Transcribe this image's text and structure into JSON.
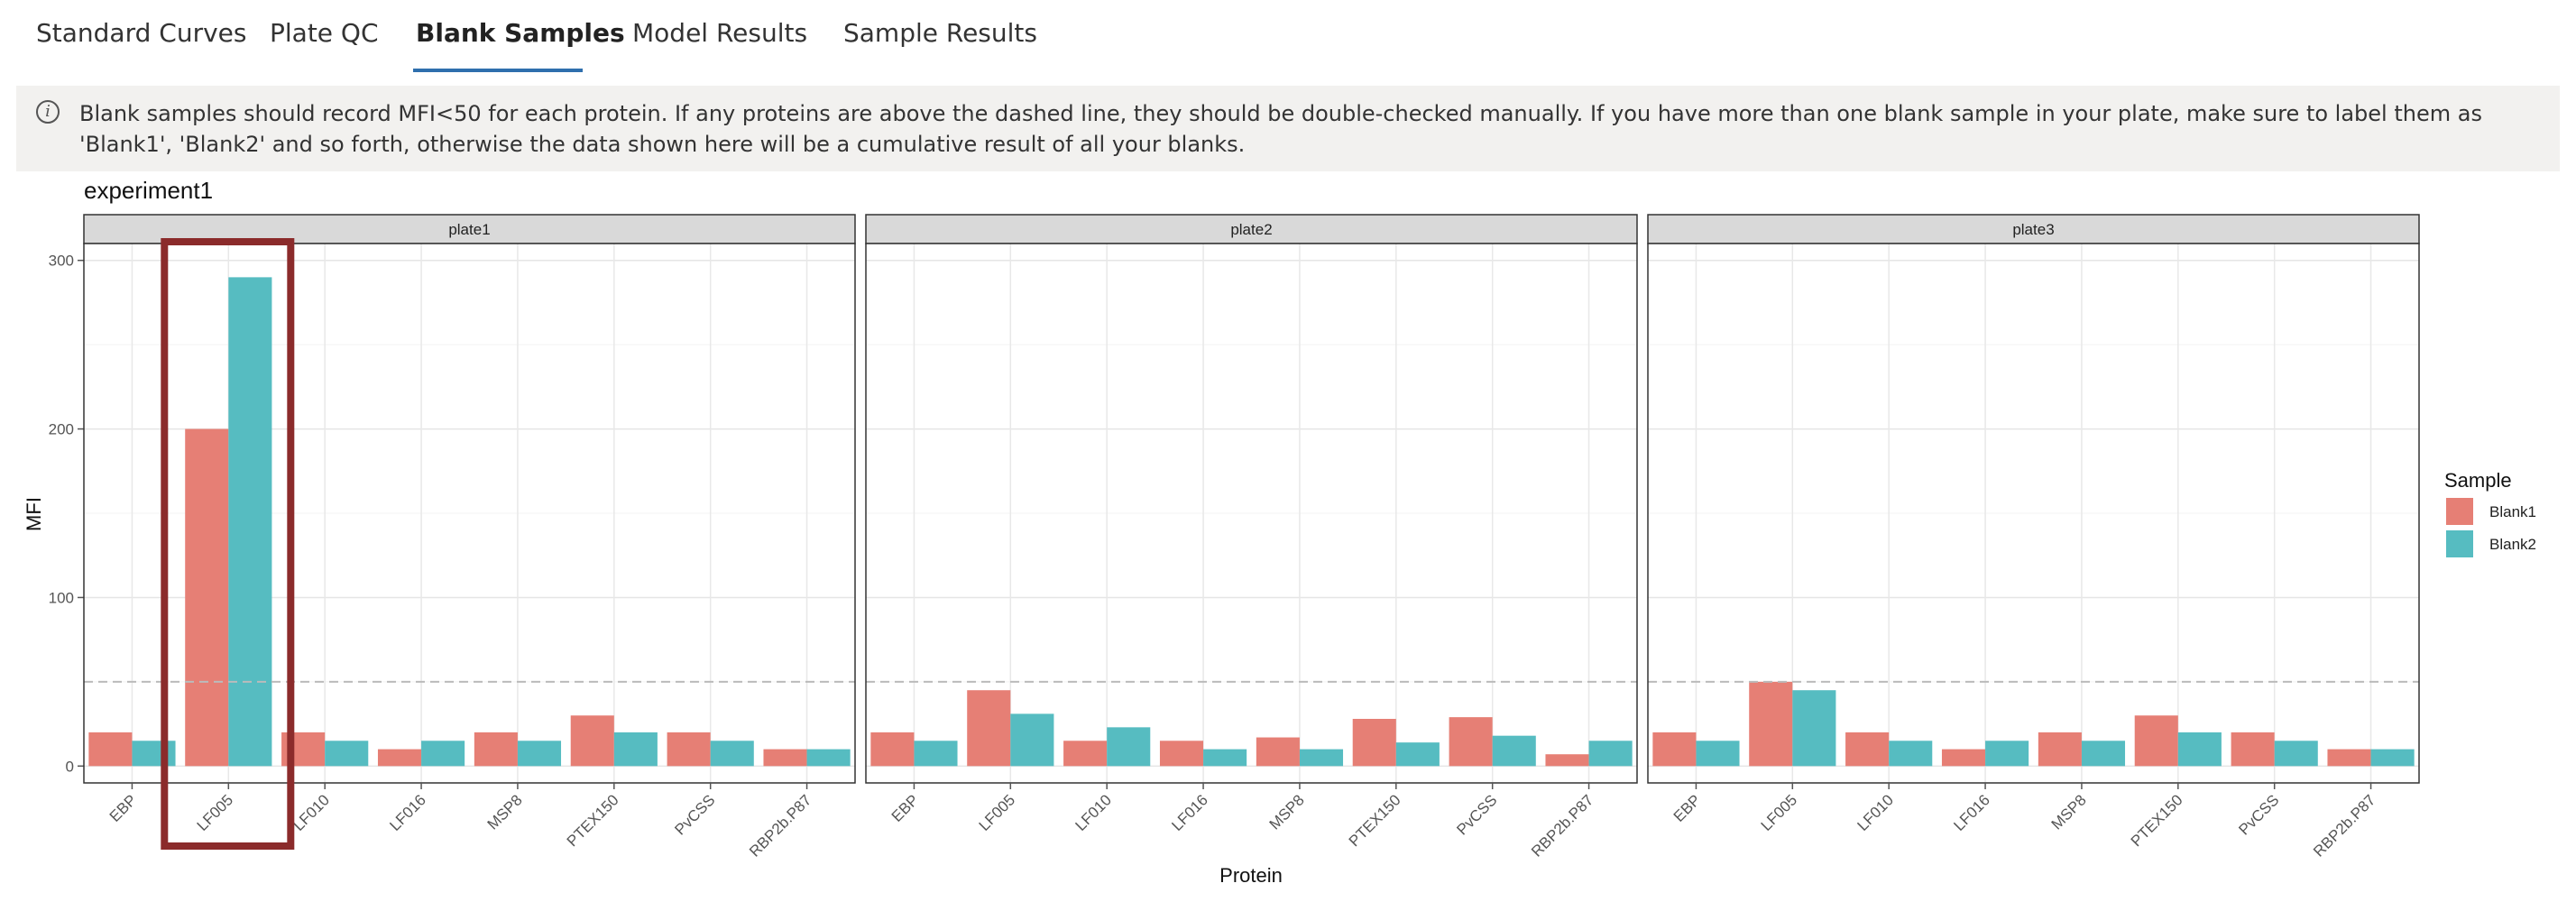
{
  "tabs": [
    {
      "label": "Standard Curves",
      "active": false
    },
    {
      "label": "Plate QC",
      "active": false
    },
    {
      "label": "Blank Samples",
      "active": true
    },
    {
      "label": "Model Results",
      "active": false
    },
    {
      "label": "Sample Results",
      "active": false
    }
  ],
  "info": {
    "icon": "info-icon",
    "text": "Blank samples should record MFI<50 for each protein. If any proteins are above the dashed line, they should be double-checked manually. If you have more than one blank sample in your plate, make sure to label them as 'Blank1', 'Blank2' and so forth, otherwise the data shown here will be a cumulative result of all your blanks."
  },
  "colors": {
    "accent": "#2f6fad",
    "blank1": "#e67f75",
    "blank2": "#56bcc1",
    "highlight": "#8b2b2b",
    "threshold": "#bbbbbb"
  },
  "chart_data": {
    "type": "bar",
    "title": "experiment1",
    "xlabel": "Protein",
    "ylabel": "MFI",
    "ylim": [
      -10,
      310
    ],
    "yticks": [
      0,
      100,
      200,
      300
    ],
    "threshold": 50,
    "categories": [
      "EBP",
      "LF005",
      "LF010",
      "LF016",
      "MSP8",
      "PTEX150",
      "PvCSS",
      "RBP2b.P87"
    ],
    "legend": {
      "title": "Sample",
      "position": "right"
    },
    "highlight_category": "LF005",
    "panels": [
      {
        "name": "plate1",
        "series": [
          {
            "name": "Blank1",
            "values": [
              20,
              200,
              20,
              10,
              20,
              30,
              20,
              10
            ]
          },
          {
            "name": "Blank2",
            "values": [
              15,
              290,
              15,
              15,
              15,
              20,
              15,
              10
            ]
          }
        ]
      },
      {
        "name": "plate2",
        "series": [
          {
            "name": "Blank1",
            "values": [
              20,
              45,
              15,
              15,
              17,
              28,
              29,
              7
            ]
          },
          {
            "name": "Blank2",
            "values": [
              15,
              31,
              23,
              10,
              10,
              14,
              18,
              15
            ]
          }
        ]
      },
      {
        "name": "plate3",
        "series": [
          {
            "name": "Blank1",
            "values": [
              20,
              50,
              20,
              10,
              20,
              30,
              20,
              10
            ]
          },
          {
            "name": "Blank2",
            "values": [
              15,
              45,
              15,
              15,
              15,
              20,
              15,
              10
            ]
          }
        ]
      }
    ]
  }
}
